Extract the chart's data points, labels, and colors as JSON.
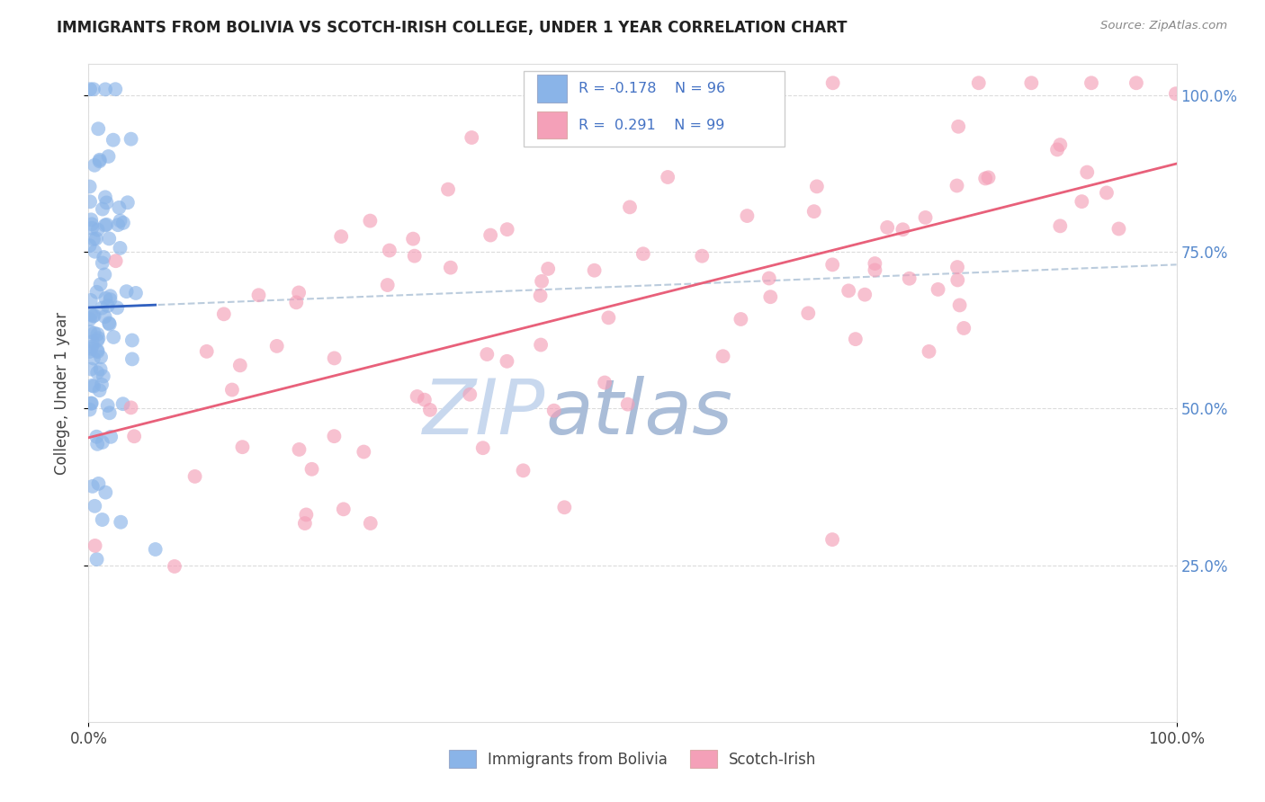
{
  "title": "IMMIGRANTS FROM BOLIVIA VS SCOTCH-IRISH COLLEGE, UNDER 1 YEAR CORRELATION CHART",
  "source": "Source: ZipAtlas.com",
  "ylabel": "College, Under 1 year",
  "xlim": [
    0.0,
    1.0
  ],
  "ylim": [
    0.0,
    1.05
  ],
  "color_bolivia": "#8AB4E8",
  "color_scotch": "#F4A0B8",
  "trendline_bolivia_color": "#3060C0",
  "trendline_scotch_color": "#E8607A",
  "trendline_dashed_color": "#BBCCDD",
  "watermark_zip": "#C5D8EE",
  "watermark_atlas": "#AABBD8",
  "legend_text_color": "#4472C4",
  "right_axis_color": "#5588CC",
  "grid_color": "#CCCCCC",
  "r1": "R = -0.178",
  "n1": "N = 96",
  "r2": "R =  0.291",
  "n2": "N = 99"
}
